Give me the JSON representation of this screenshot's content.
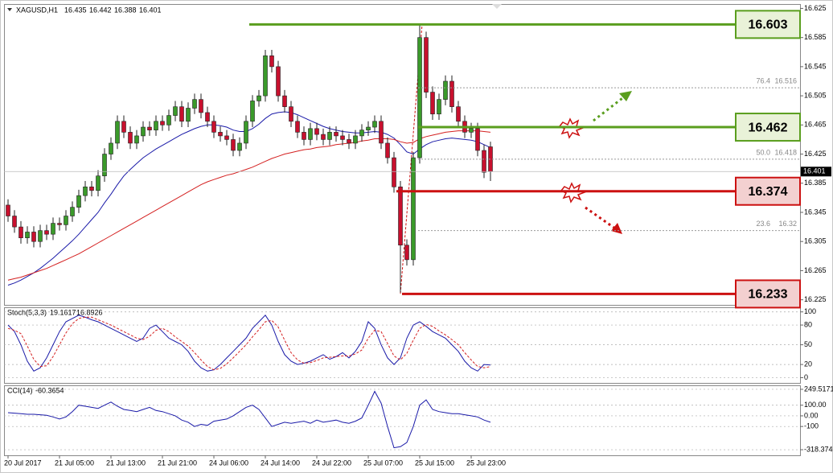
{
  "chart_data": [
    {
      "type": "candlestick",
      "title": "XAGUSD,H1",
      "categories": [
        "20 Jul 2017",
        null,
        null,
        null,
        null,
        null,
        null,
        null,
        "21 Jul 05:00",
        null,
        null,
        null,
        null,
        null,
        null,
        null,
        "21 Jul 13:00",
        null,
        null,
        null,
        null,
        null,
        null,
        null,
        "21 Jul 21:00",
        null,
        null,
        null,
        null,
        null,
        null,
        null,
        "24 Jul 06:00",
        null,
        null,
        null,
        null,
        null,
        null,
        null,
        "24 Jul 14:00",
        null,
        null,
        null,
        null,
        null,
        null,
        null,
        "24 Jul 22:00",
        null,
        null,
        null,
        null,
        null,
        null,
        null,
        "25 Jul 07:00",
        null,
        null,
        null,
        null,
        null,
        null,
        null,
        "25 Jul 15:00",
        null,
        null,
        null,
        null,
        null,
        null,
        null,
        "25 Jul 23:00",
        null,
        null,
        null
      ],
      "open": [
        16.355,
        16.34,
        16.325,
        16.31,
        16.318,
        16.305,
        16.32,
        16.315,
        16.33,
        16.328,
        16.34,
        16.352,
        16.368,
        16.38,
        16.375,
        16.395,
        16.425,
        16.44,
        16.47,
        16.455,
        16.44,
        16.45,
        16.462,
        16.458,
        16.47,
        16.465,
        16.478,
        16.49,
        16.47,
        16.488,
        16.5,
        16.482,
        16.47,
        16.455,
        16.45,
        16.445,
        16.43,
        16.44,
        16.47,
        16.498,
        16.505,
        16.56,
        16.545,
        16.505,
        16.49,
        16.47,
        16.455,
        16.445,
        16.46,
        16.452,
        16.445,
        16.455,
        16.45,
        16.445,
        16.44,
        16.45,
        16.458,
        16.462,
        16.47,
        16.44,
        16.42,
        16.38,
        16.3,
        16.28,
        16.42,
        16.585,
        16.51,
        16.48,
        16.5,
        16.525,
        16.49,
        16.47,
        16.455,
        16.46,
        16.43,
        16.435
      ],
      "high": [
        16.363,
        16.348,
        16.333,
        16.326,
        16.326,
        16.328,
        16.328,
        16.338,
        16.338,
        16.348,
        16.36,
        16.376,
        16.388,
        16.388,
        16.403,
        16.433,
        16.448,
        16.478,
        16.478,
        16.463,
        16.458,
        16.47,
        16.47,
        16.478,
        16.478,
        16.486,
        16.498,
        16.498,
        16.496,
        16.508,
        16.508,
        16.49,
        16.478,
        16.463,
        16.458,
        16.453,
        16.448,
        16.478,
        16.506,
        16.513,
        16.568,
        16.568,
        16.553,
        16.513,
        16.498,
        16.478,
        16.463,
        16.468,
        16.468,
        16.46,
        16.463,
        16.463,
        16.458,
        16.453,
        16.458,
        16.466,
        16.47,
        16.478,
        16.478,
        16.448,
        16.428,
        16.388,
        16.308,
        16.428,
        16.603,
        16.593,
        16.518,
        16.508,
        16.533,
        16.533,
        16.498,
        16.478,
        16.468,
        16.468,
        16.438,
        16.442
      ],
      "low": [
        16.332,
        16.317,
        16.302,
        16.302,
        16.297,
        16.297,
        16.307,
        16.307,
        16.32,
        16.32,
        16.332,
        16.344,
        16.36,
        16.367,
        16.367,
        16.387,
        16.417,
        16.432,
        16.447,
        16.432,
        16.432,
        16.442,
        16.45,
        16.45,
        16.457,
        16.457,
        16.47,
        16.462,
        16.462,
        16.48,
        16.474,
        16.462,
        16.447,
        16.442,
        16.437,
        16.422,
        16.422,
        16.432,
        16.462,
        16.49,
        16.497,
        16.537,
        16.497,
        16.482,
        16.462,
        16.447,
        16.437,
        16.437,
        16.444,
        16.437,
        16.437,
        16.442,
        16.437,
        16.432,
        16.432,
        16.442,
        16.45,
        16.454,
        16.432,
        16.412,
        16.372,
        16.235,
        16.272,
        16.272,
        16.412,
        16.502,
        16.472,
        16.472,
        16.492,
        16.482,
        16.462,
        16.447,
        16.447,
        16.422,
        16.392,
        16.388
      ],
      "close": [
        16.34,
        16.325,
        16.31,
        16.318,
        16.305,
        16.32,
        16.315,
        16.33,
        16.328,
        16.34,
        16.352,
        16.368,
        16.38,
        16.375,
        16.395,
        16.425,
        16.44,
        16.47,
        16.455,
        16.44,
        16.45,
        16.462,
        16.458,
        16.47,
        16.465,
        16.478,
        16.49,
        16.47,
        16.488,
        16.5,
        16.482,
        16.47,
        16.455,
        16.45,
        16.445,
        16.43,
        16.44,
        16.47,
        16.498,
        16.505,
        16.56,
        16.545,
        16.505,
        16.49,
        16.47,
        16.455,
        16.445,
        16.46,
        16.452,
        16.445,
        16.455,
        16.45,
        16.445,
        16.44,
        16.45,
        16.458,
        16.462,
        16.47,
        16.44,
        16.42,
        16.38,
        16.3,
        16.28,
        16.42,
        16.585,
        16.51,
        16.48,
        16.5,
        16.525,
        16.49,
        16.47,
        16.455,
        16.46,
        16.43,
        16.4,
        16.401
      ],
      "up_color": "#3a9a2a",
      "down_color": "#c8102e",
      "lines": [
        {
          "color": "#1a1aa8",
          "values": [
            16.245,
            16.248,
            16.252,
            16.257,
            16.262,
            16.268,
            16.275,
            16.282,
            16.29,
            16.298,
            16.306,
            16.315,
            16.325,
            16.335,
            16.345,
            16.358,
            16.37,
            16.383,
            16.395,
            16.404,
            16.412,
            16.42,
            16.426,
            16.432,
            16.437,
            16.442,
            16.447,
            16.452,
            16.456,
            16.46,
            16.463,
            16.465,
            16.465,
            16.464,
            16.462,
            16.458,
            16.456,
            16.456,
            16.46,
            16.466,
            16.474,
            16.48,
            16.482,
            16.483,
            16.482,
            16.479,
            16.475,
            16.471,
            16.467,
            16.463,
            16.46,
            16.458,
            16.456,
            16.455,
            16.454,
            16.454,
            16.455,
            16.456,
            16.455,
            16.452,
            16.447,
            16.438,
            16.428,
            16.425,
            16.432,
            16.438,
            16.442,
            16.444,
            16.446,
            16.447,
            16.446,
            16.445,
            16.444,
            16.442,
            16.438,
            16.434
          ]
        },
        {
          "color": "#d42020",
          "values": [
            16.252,
            16.254,
            16.256,
            16.259,
            16.262,
            16.265,
            16.268,
            16.272,
            16.276,
            16.28,
            16.284,
            16.288,
            16.293,
            16.298,
            16.303,
            16.308,
            16.313,
            16.318,
            16.323,
            16.328,
            16.333,
            16.338,
            16.343,
            16.348,
            16.353,
            16.358,
            16.363,
            16.368,
            16.373,
            16.378,
            16.383,
            16.387,
            16.39,
            16.393,
            16.396,
            16.398,
            16.401,
            16.404,
            16.407,
            16.411,
            16.415,
            16.419,
            16.422,
            16.425,
            16.427,
            16.429,
            16.431,
            16.432,
            16.434,
            16.435,
            16.436,
            16.438,
            16.439,
            16.44,
            16.441,
            16.443,
            16.444,
            16.446,
            16.446,
            16.446,
            16.445,
            16.442,
            16.44,
            16.441,
            16.446,
            16.449,
            16.451,
            16.453,
            16.455,
            16.456,
            16.457,
            16.457,
            16.457,
            16.457,
            16.456,
            16.455
          ]
        }
      ],
      "levels": [
        {
          "value": 16.603,
          "color": "#5a9e1e"
        },
        {
          "value": 16.462,
          "color": "#5a9e1e"
        },
        {
          "value": 16.374,
          "color": "#cc1111"
        },
        {
          "value": 16.233,
          "color": "#cc1111"
        }
      ],
      "fib_levels": [
        {
          "label": "76.4",
          "value": 16.516
        },
        {
          "label": "50.0",
          "value": 16.418
        },
        {
          "label": "23.6",
          "value": 16.32
        }
      ],
      "ylim": [
        16.218,
        16.631
      ],
      "yticks": [
        16.625,
        16.585,
        16.545,
        16.505,
        16.465,
        16.425,
        16.385,
        16.345,
        16.305,
        16.265,
        16.225
      ]
    },
    {
      "type": "line",
      "title": "Stoch(5,3,3)",
      "series": [
        {
          "color": "#1a1aa8",
          "dash": false,
          "values": [
            80,
            70,
            50,
            25,
            10,
            15,
            30,
            50,
            70,
            85,
            90,
            95,
            92,
            88,
            85,
            80,
            75,
            70,
            65,
            60,
            55,
            60,
            75,
            80,
            70,
            60,
            55,
            50,
            40,
            25,
            15,
            10,
            12,
            20,
            30,
            40,
            50,
            60,
            75,
            85,
            95,
            80,
            55,
            35,
            25,
            20,
            22,
            25,
            30,
            35,
            28,
            32,
            38,
            30,
            40,
            55,
            85,
            75,
            50,
            30,
            20,
            30,
            60,
            80,
            85,
            78,
            70,
            65,
            60,
            50,
            40,
            25,
            15,
            10,
            20,
            19.1617
          ]
        },
        {
          "color": "#d42020",
          "dash": true,
          "values": [
            75,
            72,
            67,
            48,
            28,
            17,
            18,
            32,
            50,
            68,
            82,
            90,
            92,
            92,
            88,
            84,
            80,
            75,
            70,
            65,
            60,
            58,
            63,
            72,
            75,
            70,
            62,
            55,
            48,
            38,
            27,
            17,
            12,
            14,
            21,
            30,
            40,
            50,
            62,
            73,
            85,
            87,
            77,
            57,
            38,
            27,
            22,
            23,
            26,
            30,
            31,
            32,
            33,
            33,
            36,
            42,
            60,
            72,
            70,
            52,
            33,
            27,
            37,
            57,
            75,
            81,
            78,
            71,
            65,
            58,
            50,
            38,
            27,
            17,
            15,
            16.8926
          ]
        }
      ],
      "ylim": [
        -8,
        107
      ],
      "yticks": [
        100,
        80,
        50,
        20,
        0
      ],
      "grid": true
    },
    {
      "type": "line",
      "title": "CCI(14)",
      "series": [
        {
          "color": "#1a1aa8",
          "dash": false,
          "values": [
            30,
            25,
            20,
            15,
            15,
            10,
            5,
            -10,
            -30,
            -10,
            40,
            100,
            90,
            80,
            70,
            100,
            130,
            90,
            60,
            50,
            40,
            60,
            80,
            50,
            40,
            20,
            0,
            -40,
            -60,
            -100,
            -80,
            -90,
            -50,
            -40,
            -30,
            0,
            40,
            80,
            100,
            60,
            -20,
            -100,
            -80,
            -60,
            -70,
            -60,
            -50,
            -70,
            -40,
            -60,
            -50,
            -40,
            -60,
            -70,
            -50,
            -20,
            100,
            230,
            120,
            -100,
            -300,
            -290,
            -250,
            -100,
            100,
            150,
            60,
            40,
            30,
            20,
            20,
            10,
            0,
            -10,
            -40,
            -60.3654
          ]
        }
      ],
      "ylim": [
        -371,
        287
      ],
      "yticks": [
        249.5171,
        {
          "value": 100,
          "label": "100.00"
        },
        {
          "value": 0,
          "label": "0.00"
        },
        -100,
        -318.3747
      ],
      "grid": true
    }
  ]
}
